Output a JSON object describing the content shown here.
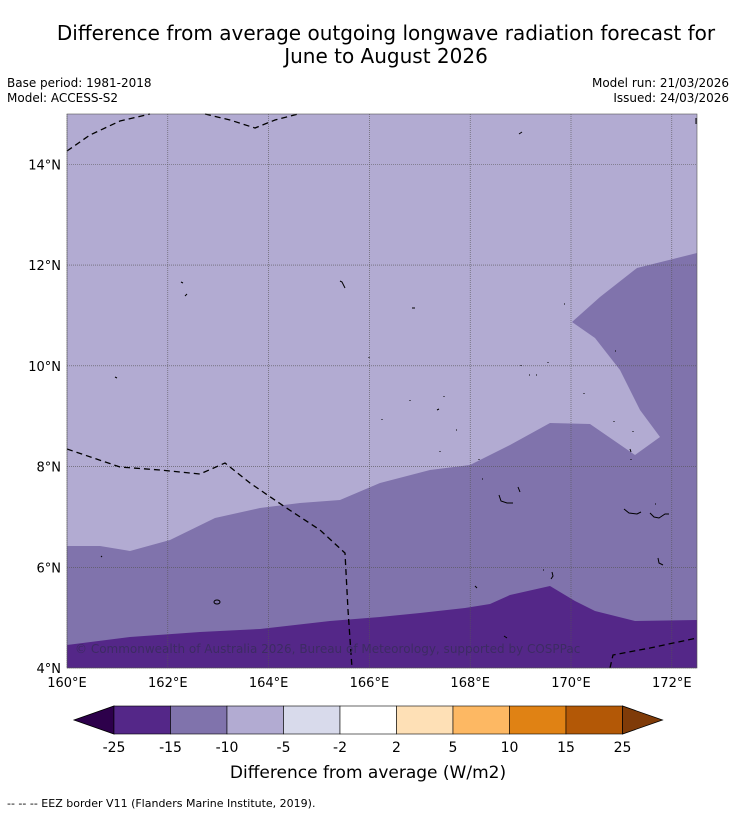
{
  "header": {
    "title_line1": "Difference from average outgoing longwave radiation forecast for",
    "title_line2": "June to August 2026",
    "base_period": "Base period: 1981-2018",
    "model": "Model: ACCESS-S2",
    "model_run": "Model run: 21/03/2026",
    "issued": "Issued: 24/03/2026"
  },
  "map": {
    "lon_range": [
      160,
      172.5
    ],
    "lat_range": [
      4,
      15
    ],
    "lon_ticks": [
      "160°E",
      "162°E",
      "164°E",
      "166°E",
      "168°E",
      "170°E",
      "172°E"
    ],
    "lat_ticks": [
      "4°N",
      "6°N",
      "8°N",
      "10°N",
      "12°N",
      "14°N"
    ],
    "grid": true,
    "copyright": "© Commonwealth of Australia 2026, Bureau of Meteorology, supported by COSPPac"
  },
  "colorbar": {
    "labels": [
      "-25",
      "-15",
      "-10",
      "-5",
      "-2",
      "2",
      "5",
      "10",
      "15",
      "25"
    ],
    "colors": [
      "#2d004b",
      "#542788",
      "#8073ac",
      "#b2abd2",
      "#d8daeb",
      "#ffffff",
      "#fee0b6",
      "#fdb863",
      "#e08214",
      "#b35806",
      "#7f3b08"
    ],
    "title": "Difference from average (W/m2)"
  },
  "footnote": "--  --  -- EEZ border V11 (Flanders Marine Institute, 2019)."
}
